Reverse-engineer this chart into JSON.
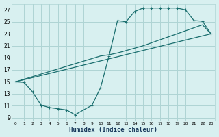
{
  "xlabel": "Humidex (Indice chaleur)",
  "bg_color": "#d8f0f0",
  "grid_color": "#aed4d4",
  "line_color": "#1a6e6e",
  "xlim": [
    -0.5,
    23.5
  ],
  "ylim": [
    8.5,
    28
  ],
  "xticks": [
    0,
    1,
    2,
    3,
    4,
    5,
    6,
    7,
    8,
    9,
    10,
    11,
    12,
    13,
    14,
    15,
    16,
    17,
    18,
    19,
    20,
    21,
    22,
    23
  ],
  "yticks": [
    9,
    11,
    13,
    15,
    17,
    19,
    21,
    23,
    25,
    27
  ],
  "curve1_x": [
    0,
    1,
    2,
    3,
    4,
    5,
    6,
    7,
    9,
    10,
    11,
    12,
    13,
    14,
    15,
    16,
    17,
    18,
    19,
    20,
    21,
    22,
    23
  ],
  "curve1_y": [
    15,
    14.9,
    13.3,
    11.1,
    10.7,
    10.5,
    10.3,
    9.5,
    11.1,
    14.0,
    19.3,
    25.2,
    25.0,
    26.7,
    27.3,
    27.3,
    27.3,
    27.3,
    27.3,
    27.0,
    25.2,
    25.1,
    23.0
  ],
  "curve2_x": [
    0,
    10,
    11,
    12,
    13,
    14,
    15,
    16,
    17,
    18,
    19,
    20,
    21,
    22,
    23
  ],
  "curve2_y": [
    15,
    19.3,
    19.5,
    19.8,
    20.2,
    20.6,
    21.0,
    21.5,
    22.0,
    22.5,
    23.0,
    23.5,
    24.0,
    24.5,
    23.0
  ],
  "curve3_x": [
    0,
    23
  ],
  "curve3_y": [
    15,
    23.0
  ]
}
